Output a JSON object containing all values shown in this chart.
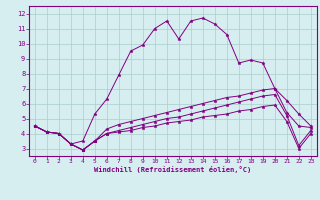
{
  "xlabel": "Windchill (Refroidissement éolien,°C)",
  "background_color": "#d6eef0",
  "line_color": "#800080",
  "grid_color": "#aacccc",
  "xlim": [
    -0.5,
    23.5
  ],
  "ylim": [
    2.5,
    12.5
  ],
  "xticks": [
    0,
    1,
    2,
    3,
    4,
    5,
    6,
    7,
    8,
    9,
    10,
    11,
    12,
    13,
    14,
    15,
    16,
    17,
    18,
    19,
    20,
    21,
    22,
    23
  ],
  "yticks": [
    3,
    4,
    5,
    6,
    7,
    8,
    9,
    10,
    11,
    12
  ],
  "series": [
    [
      4.5,
      4.1,
      4.0,
      3.3,
      3.5,
      5.3,
      6.3,
      7.9,
      9.5,
      9.9,
      11.0,
      11.5,
      10.3,
      11.5,
      11.7,
      11.3,
      10.6,
      8.7,
      8.9,
      8.7,
      7.0,
      6.2,
      5.3,
      4.5
    ],
    [
      4.5,
      4.1,
      4.0,
      3.3,
      2.9,
      3.5,
      4.3,
      4.6,
      4.8,
      5.0,
      5.2,
      5.4,
      5.6,
      5.8,
      6.0,
      6.2,
      6.4,
      6.5,
      6.7,
      6.9,
      7.0,
      5.4,
      4.5,
      4.4
    ],
    [
      4.5,
      4.1,
      4.0,
      3.3,
      2.9,
      3.5,
      4.0,
      4.2,
      4.4,
      4.6,
      4.8,
      5.0,
      5.1,
      5.3,
      5.5,
      5.7,
      5.9,
      6.1,
      6.3,
      6.5,
      6.6,
      5.2,
      3.2,
      4.2
    ],
    [
      4.5,
      4.1,
      4.0,
      3.3,
      2.9,
      3.5,
      4.0,
      4.1,
      4.2,
      4.4,
      4.5,
      4.7,
      4.8,
      4.9,
      5.1,
      5.2,
      5.3,
      5.5,
      5.6,
      5.8,
      5.9,
      4.8,
      3.0,
      4.0
    ]
  ]
}
